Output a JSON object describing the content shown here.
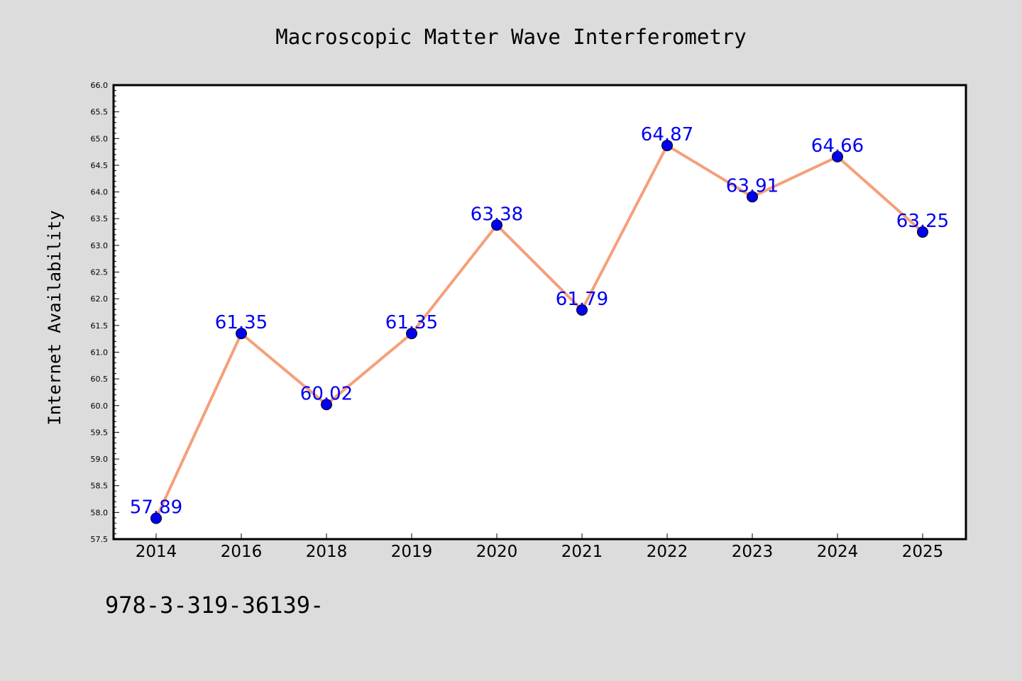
{
  "chart_data": {
    "type": "line",
    "title": "Macroscopic Matter Wave Interferometry",
    "xlabel": "",
    "ylabel": "Internet Availability",
    "categories": [
      "2014",
      "2016",
      "2018",
      "2019",
      "2020",
      "2021",
      "2022",
      "2023",
      "2024",
      "2025"
    ],
    "series": [
      {
        "values": [
          57.89,
          61.35,
          60.02,
          61.35,
          63.38,
          61.79,
          64.87,
          63.91,
          64.66,
          63.25
        ],
        "line_color": "#f4a07a",
        "marker_color": "#0000ee",
        "label_color": "#0000ee"
      }
    ],
    "ylim": [
      57.5,
      66.0
    ],
    "yticks": [
      "57.5",
      "58.0",
      "58.5",
      "59.0",
      "59.5",
      "60.0",
      "60.5",
      "61.0",
      "61.5",
      "62.0",
      "62.5",
      "63.0",
      "63.5",
      "64.0",
      "64.5",
      "65.0",
      "65.5",
      "66.0"
    ],
    "grid": false,
    "legend": "none",
    "background_color": "#dcdcdc",
    "plot_background_color": "#ffffff"
  },
  "footer_text": "978-3-319-36139-"
}
